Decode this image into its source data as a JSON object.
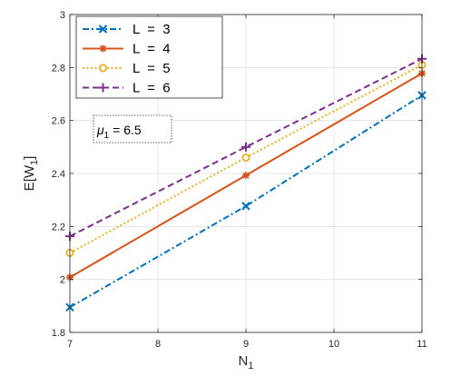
{
  "chart_data": {
    "type": "line",
    "title": "",
    "xlabel": "N",
    "xlabel_sub": "1",
    "ylabel": "E[W",
    "ylabel_sub": "1",
    "ylabel_close": "]",
    "x": [
      7,
      9,
      11
    ],
    "xlim": [
      7,
      11
    ],
    "ylim": [
      1.8,
      3.0
    ],
    "xticks": [
      7,
      8,
      9,
      10,
      11
    ],
    "xtick_labels": [
      "7",
      "8",
      "9",
      "10",
      "11"
    ],
    "yticks": [
      1.8,
      2.0,
      2.2,
      2.4,
      2.6,
      2.8,
      3.0
    ],
    "ytick_labels": [
      "1.8",
      "2",
      "2.2",
      "2.4",
      "2.6",
      "2.8",
      "3"
    ],
    "grid": true,
    "legend_position": "top-left",
    "series": [
      {
        "name": "L  =  3",
        "values": [
          1.895,
          2.277,
          2.695
        ],
        "color": "#0072BD",
        "marker": "x",
        "dash": "dashdot"
      },
      {
        "name": "L  =  4",
        "values": [
          2.008,
          2.393,
          2.778
        ],
        "color": "#D95319",
        "marker": "star",
        "dash": "solid"
      },
      {
        "name": "L  =  5",
        "values": [
          2.1,
          2.46,
          2.81
        ],
        "color": "#EDB120",
        "marker": "circle",
        "dash": "dotted"
      },
      {
        "name": "L  =  6",
        "values": [
          2.163,
          2.5,
          2.833
        ],
        "color": "#7E2F8E",
        "marker": "plus",
        "dash": "dashed"
      }
    ],
    "annotation": {
      "symbol": "μ",
      "sub": "1",
      "text": " = 6.5"
    }
  }
}
